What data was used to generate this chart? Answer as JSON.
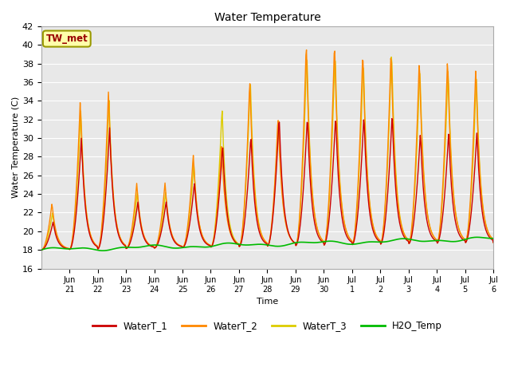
{
  "title": "Water Temperature",
  "xlabel": "Time",
  "ylabel": "Water Temperature (C)",
  "annotation": "TW_met",
  "ylim": [
    16,
    42
  ],
  "yticks": [
    16,
    18,
    20,
    22,
    24,
    26,
    28,
    30,
    32,
    34,
    36,
    38,
    40,
    42
  ],
  "xlim_days": 16,
  "x_tick_positions": [
    1,
    2,
    3,
    4,
    5,
    6,
    7,
    8,
    9,
    10,
    11,
    12,
    13,
    14,
    15,
    16
  ],
  "x_tick_labels": [
    "Jun 21",
    "Jun 22",
    "Jun 23",
    "Jun 24",
    "Jun 25",
    "Jun 26",
    "Jun 27",
    "Jun 28",
    "Jun 29",
    "Jun 30",
    "Jul 1",
    "Jul 2",
    "Jul 3",
    "Jul 4",
    "Jul 5",
    "Jul 6"
  ],
  "colors": {
    "WaterT_1": "#cc0000",
    "WaterT_2": "#ff8800",
    "WaterT_3": "#ddcc00",
    "H2O_Temp": "#00bb00",
    "bg_plot": "#e8e8e8",
    "bg_fig": "#ffffff",
    "annotation_bg": "#ffffaa",
    "annotation_border": "#999900",
    "annotation_text": "#990000"
  },
  "legend": [
    "WaterT_1",
    "WaterT_2",
    "WaterT_3",
    "H2O_Temp"
  ]
}
